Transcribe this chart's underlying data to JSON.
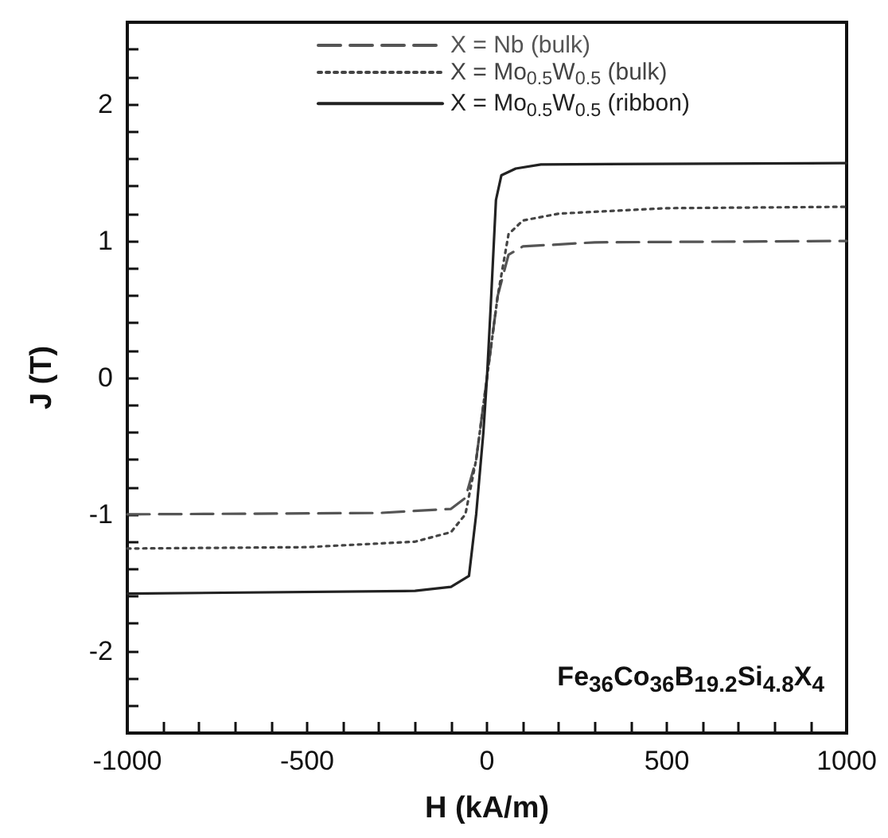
{
  "chart_data": {
    "type": "line",
    "xlabel": "H (kA/m)",
    "ylabel": "J (T)",
    "xlim": [
      -1000,
      1000
    ],
    "ylim": [
      -2.6,
      2.6
    ],
    "xticks": [
      -1000,
      {
        "value": -900,
        "label": null
      },
      {
        "value": -800,
        "label": null
      },
      {
        "value": -700,
        "label": null
      },
      {
        "value": -600,
        "label": null
      },
      -500,
      {
        "value": -400,
        "label": null
      },
      {
        "value": -300,
        "label": null
      },
      {
        "value": -200,
        "label": null
      },
      {
        "value": -100,
        "label": null
      },
      0,
      {
        "value": 100,
        "label": null
      },
      {
        "value": 200,
        "label": null
      },
      {
        "value": 300,
        "label": null
      },
      {
        "value": 400,
        "label": null
      },
      500,
      {
        "value": 600,
        "label": null
      },
      {
        "value": 700,
        "label": null
      },
      {
        "value": 800,
        "label": null
      },
      {
        "value": 900,
        "label": null
      },
      1000
    ],
    "yticks": [
      {
        "value": -2.6,
        "label": null
      },
      {
        "value": -2.4,
        "label": null
      },
      {
        "value": -2.2,
        "label": null
      },
      -2,
      {
        "value": -1.8,
        "label": null
      },
      {
        "value": -1.6,
        "label": null
      },
      {
        "value": -1.4,
        "label": null
      },
      {
        "value": -1.2,
        "label": null
      },
      -1,
      {
        "value": -0.8,
        "label": null
      },
      {
        "value": -0.6,
        "label": null
      },
      {
        "value": -0.4,
        "label": null
      },
      {
        "value": -0.2,
        "label": null
      },
      0,
      {
        "value": 0.2,
        "label": null
      },
      {
        "value": 0.4,
        "label": null
      },
      {
        "value": 0.6,
        "label": null
      },
      {
        "value": 0.8,
        "label": null
      },
      1,
      {
        "value": 1.2,
        "label": null
      },
      {
        "value": 1.4,
        "label": null
      },
      {
        "value": 1.6,
        "label": null
      },
      {
        "value": 1.8,
        "label": null
      },
      2,
      {
        "value": 2.2,
        "label": null
      },
      {
        "value": 2.4,
        "label": null
      },
      {
        "value": 2.6,
        "label": null
      }
    ],
    "grid": false,
    "legend": "top",
    "marker": "none",
    "series": [
      {
        "name": "X = Nb (bulk)",
        "color": "#555555",
        "line_style": "dashed",
        "x": [
          -1000,
          -300,
          -100,
          -60,
          -30,
          0,
          30,
          60,
          100,
          300,
          1000
        ],
        "values": [
          -1.0,
          -0.99,
          -0.96,
          -0.88,
          -0.6,
          0,
          0.6,
          0.9,
          0.96,
          0.99,
          1.0
        ]
      },
      {
        "name": "X = Mo$_{0.5}$W$_{0.5}$ (bulk)",
        "color": "#444444",
        "line_style": "dotted",
        "x": [
          -1000,
          -500,
          -200,
          -100,
          -60,
          -30,
          0,
          30,
          60,
          100,
          200,
          500,
          1000
        ],
        "values": [
          -1.25,
          -1.24,
          -1.2,
          -1.13,
          -1.0,
          -0.6,
          0,
          0.6,
          1.05,
          1.15,
          1.2,
          1.24,
          1.25
        ]
      },
      {
        "name": "X = Mo$_{0.5}$W$_{0.5}$ (ribbon)",
        "color": "#222222",
        "line_style": "solid",
        "x": [
          -1000,
          -200,
          -100,
          -50,
          -30,
          -10,
          0,
          10,
          25,
          40,
          80,
          150,
          1000
        ],
        "values": [
          -1.58,
          -1.56,
          -1.53,
          -1.45,
          -1.0,
          -0.4,
          0,
          0.5,
          1.3,
          1.48,
          1.53,
          1.56,
          1.57
        ]
      }
    ],
    "annotations": [
      "Fe$_{36}$Co$_{36}$B$_{19.2}$Si$_{4.8}$X$_{4}$"
    ]
  }
}
